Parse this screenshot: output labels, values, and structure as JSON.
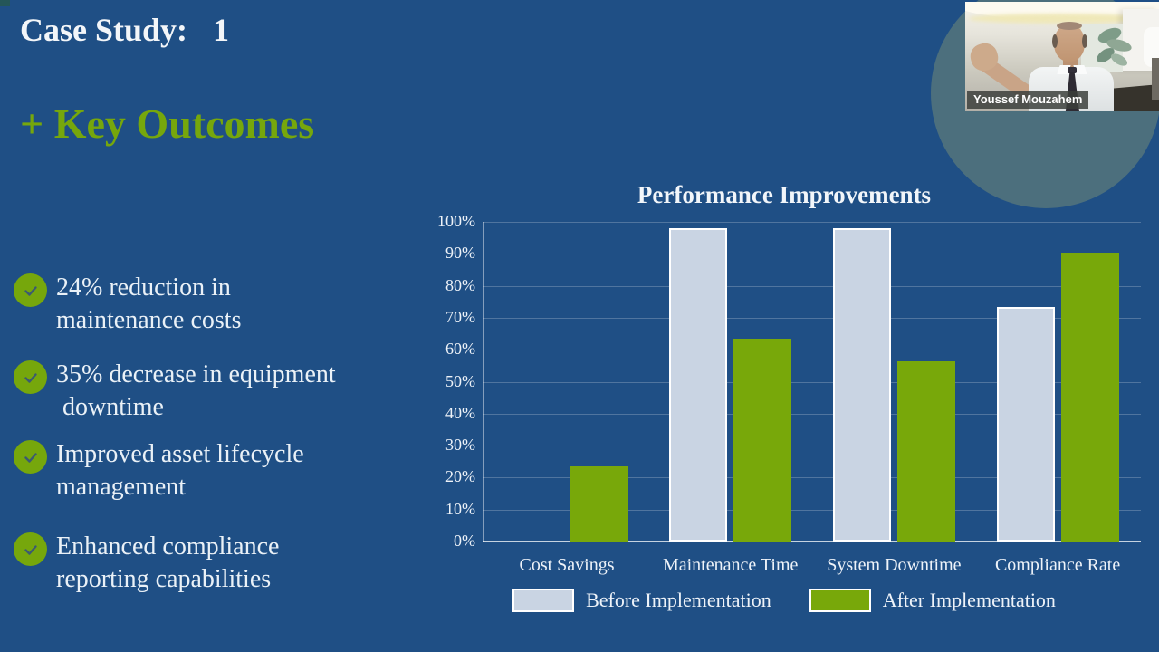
{
  "slide": {
    "title_label": "Case Study:",
    "title_number": "1",
    "heading": "+ Key Outcomes",
    "bullets": [
      "24% reduction in\nmaintenance costs",
      "35% decrease in equipment\n downtime",
      "Improved asset lifecycle\nmanagement",
      "Enhanced compliance\nreporting capabilities"
    ]
  },
  "chart_data": {
    "type": "bar",
    "title": "Performance Improvements",
    "categories": [
      "Cost Savings",
      "Maintenance Time",
      "System Downtime",
      "Compliance Rate"
    ],
    "series": [
      {
        "name": "Before Implementation",
        "color": "#c9d4e3",
        "values": [
          0,
          98,
          98,
          73.5
        ]
      },
      {
        "name": "After Implementation",
        "color": "#78a80a",
        "values": [
          23.5,
          63.5,
          56.5,
          90.5
        ]
      }
    ],
    "xlabel": "",
    "ylabel": "",
    "ylim": [
      0,
      100
    ],
    "ytick_step": 10,
    "ytick_suffix": "%",
    "grid": true,
    "legend_position": "bottom"
  },
  "webcam": {
    "name_label": "Youssef Mouzahem"
  },
  "colors": {
    "background": "#1f4f85",
    "accent_green": "#76a70c",
    "bar_before": "#c9d4e3",
    "text_light": "#eaf1f7",
    "circle_decoration": "#4c6f7d",
    "check_stroke": "#3c5a71"
  }
}
